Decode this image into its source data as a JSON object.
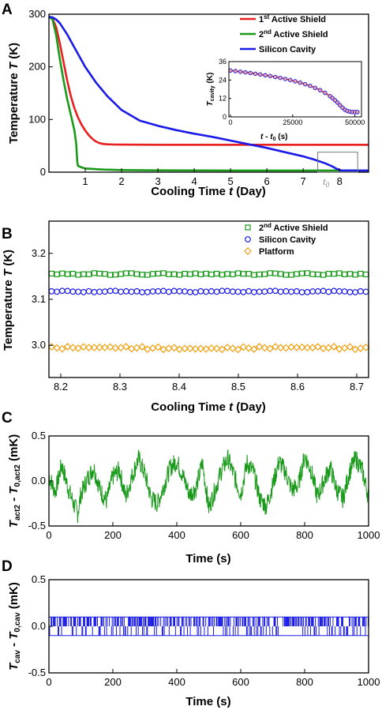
{
  "chart_data": [
    {
      "panel": "A",
      "type": "line",
      "xlabel_prefix": "Cooling Time ",
      "xlabel_var": "t",
      "xlabel_suffix": " (Day)",
      "ylabel_prefix": "Temperature ",
      "ylabel_var": "T",
      "ylabel_suffix": " (K)",
      "xlim": [
        0.0,
        8.8
      ],
      "ylim": [
        0,
        300
      ],
      "xticks": [
        1,
        2,
        3,
        4,
        5,
        6,
        7,
        8
      ],
      "yticks": [
        0,
        100,
        200,
        300
      ],
      "t0_marker": {
        "x": 7.65,
        "label": "t",
        "sub": "0"
      },
      "zoom_box": {
        "x": [
          7.4,
          8.5
        ],
        "y": [
          0,
          38
        ]
      },
      "legend_position": "top-right",
      "series": [
        {
          "name": "1st Active Shield",
          "name_base": "1",
          "name_sup": "st",
          "name_rest": " Active Shield",
          "color": "#e81f1f",
          "x": [
            0.0,
            0.1,
            0.2,
            0.3,
            0.4,
            0.5,
            0.6,
            0.7,
            0.8,
            0.9,
            1.0,
            1.1,
            1.2,
            1.3,
            1.4,
            1.5,
            1.6,
            1.8,
            2.0,
            3.0,
            4.0,
            5.0,
            6.0,
            7.0,
            8.0,
            8.8
          ],
          "y": [
            295,
            292,
            275,
            245,
            210,
            175,
            145,
            122,
            104,
            90,
            79,
            70,
            63,
            58,
            55,
            53.5,
            53,
            52.5,
            52.3,
            52,
            52,
            52,
            52,
            52,
            52,
            52
          ]
        },
        {
          "name": "2nd Active Shield",
          "name_base": "2",
          "name_sup": "nd",
          "name_rest": " Active Shield",
          "color": "#1a9a1a",
          "x": [
            0.0,
            0.1,
            0.2,
            0.3,
            0.4,
            0.5,
            0.6,
            0.7,
            0.75,
            0.78,
            0.8,
            0.9,
            1.0,
            1.5,
            2.0,
            3.0,
            4.0,
            5.0,
            6.0,
            7.0,
            8.0,
            8.8
          ],
          "y": [
            295,
            290,
            260,
            215,
            175,
            140,
            110,
            80,
            55,
            20,
            12,
            9,
            7,
            5,
            4,
            3.5,
            3.3,
            3.2,
            3.2,
            3.15,
            3.15,
            3.15
          ]
        },
        {
          "name": "Silicon Cavity",
          "name_base": "Silicon Cavity",
          "name_sup": "",
          "name_rest": "",
          "color": "#1a1ae8",
          "x": [
            0.0,
            0.1,
            0.2,
            0.3,
            0.5,
            0.7,
            1.0,
            1.3,
            1.6,
            2.0,
            2.5,
            3.0,
            3.5,
            4.0,
            4.5,
            5.0,
            5.5,
            6.0,
            6.5,
            7.0,
            7.3,
            7.6,
            7.8,
            7.9,
            8.0,
            8.05,
            8.1,
            8.8
          ],
          "y": [
            295,
            294,
            290,
            283,
            262,
            237,
            200,
            170,
            145,
            118,
            98,
            88,
            80,
            73,
            67,
            60,
            53,
            46,
            38,
            30,
            24,
            17,
            11,
            7,
            4,
            3.3,
            3.1,
            3.1
          ]
        }
      ],
      "inset": {
        "type": "scatter",
        "xlabel_a": "t",
        "xlabel_b": " - ",
        "xlabel_c": "t",
        "xlabel_sub": "0",
        "xlabel_unit": " (s)",
        "ylabel_var": "T",
        "ylabel_sub": "cavity",
        "ylabel_unit": " (K)",
        "xlim": [
          0,
          52000
        ],
        "ylim": [
          0,
          36
        ],
        "xticks": [
          0,
          25000,
          50000
        ],
        "yticks": [
          0,
          12,
          24,
          36
        ],
        "marker_face": "#f0a0a0",
        "marker_edge": "#1a1ae8",
        "line_color": "#e81f1f",
        "x": [
          0,
          2000,
          4000,
          6000,
          8000,
          10000,
          12000,
          14000,
          16000,
          18000,
          20000,
          22000,
          24000,
          26000,
          28000,
          30000,
          32000,
          34000,
          36000,
          38000,
          40000,
          41000,
          42000,
          43000,
          44000,
          45000,
          46000,
          47000,
          48000,
          49000,
          50000,
          51000
        ],
        "y": [
          30.2,
          29.8,
          29.4,
          29.0,
          28.6,
          28.1,
          27.6,
          27.1,
          26.6,
          26.0,
          25.4,
          24.7,
          24.0,
          23.2,
          22.3,
          21.3,
          20.2,
          18.9,
          17.4,
          15.6,
          13.5,
          12.2,
          10.8,
          9.3,
          7.6,
          6.0,
          4.6,
          3.8,
          3.4,
          3.2,
          3.15,
          3.15
        ]
      }
    },
    {
      "panel": "B",
      "type": "scatter",
      "xlabel_prefix": "Cooling Time ",
      "xlabel_var": "t",
      "xlabel_suffix": " (Day)",
      "ylabel_prefix": "Temperature ",
      "ylabel_var": "T",
      "ylabel_suffix": " (K)",
      "xlim": [
        8.18,
        8.72
      ],
      "ylim": [
        2.93,
        3.27
      ],
      "xticks": [
        8.2,
        8.3,
        8.4,
        8.5,
        8.6,
        8.7
      ],
      "yticks": [
        3.0,
        3.1,
        3.2
      ],
      "legend_position": "top-right",
      "series": [
        {
          "name": "2nd Active Shield",
          "name_base": "2",
          "name_sup": "nd",
          "name_rest": " Active Shield",
          "marker": "square",
          "color": "#1a9a1a",
          "mean": 3.155,
          "amplitude": 0.002,
          "period": 0.06
        },
        {
          "name": "Silicon Cavity",
          "name_base": "Silicon Cavity",
          "name_sup": "",
          "name_rest": "",
          "marker": "circle",
          "color": "#1a1ae8",
          "mean": 3.117,
          "amplitude": 0.0015,
          "period": 0.09
        },
        {
          "name": "Platform",
          "name_base": "Platform",
          "name_sup": "",
          "name_rest": "",
          "marker": "diamond",
          "color": "#f0a010",
          "mean": 2.994,
          "amplitude": 0.003,
          "period": 0.025
        }
      ]
    },
    {
      "panel": "C",
      "type": "line",
      "xlabel": "Time (s)",
      "ylabel_a": "T",
      "ylabel_a_sub": "act2",
      "ylabel_b": " - ",
      "ylabel_c": "T",
      "ylabel_c_sub": "0,act2",
      "ylabel_unit": " (mK)",
      "xlim": [
        0,
        1000
      ],
      "ylim": [
        -0.5,
        0.5
      ],
      "xticks": [
        0,
        200,
        400,
        600,
        800,
        1000
      ],
      "yticks": [
        -0.5,
        0.0,
        0.5
      ],
      "ytick_labels": [
        "-0.5",
        "0.0",
        "0.5"
      ],
      "series": [
        {
          "name": "",
          "color": "#1a9a1a",
          "x": [
            0,
            20,
            40,
            60,
            80,
            90,
            100,
            120,
            140,
            160,
            180,
            200,
            220,
            240,
            260,
            280,
            300,
            320,
            340,
            360,
            380,
            400,
            420,
            440,
            460,
            480,
            500,
            520,
            540,
            560,
            580,
            600,
            620,
            640,
            660,
            680,
            700,
            720,
            740,
            760,
            780,
            800,
            820,
            840,
            860,
            880,
            900,
            920,
            940,
            960,
            980,
            1000
          ],
          "y": [
            0.05,
            -0.12,
            0.18,
            -0.08,
            -0.28,
            -0.36,
            -0.15,
            0.02,
            0.15,
            -0.1,
            -0.22,
            0.05,
            0.12,
            -0.18,
            0.05,
            0.25,
            0.08,
            -0.2,
            -0.25,
            -0.05,
            0.15,
            0.22,
            0.05,
            -0.15,
            -0.08,
            0.2,
            -0.3,
            -0.1,
            0.12,
            0.25,
            0.05,
            -0.15,
            0.2,
            0.1,
            -0.2,
            -0.28,
            -0.05,
            0.22,
            0.1,
            -0.1,
            -0.05,
            0.28,
            0.12,
            -0.18,
            0.0,
            0.15,
            -0.1,
            -0.2,
            0.1,
            0.25,
            0.12,
            -0.18
          ]
        }
      ]
    },
    {
      "panel": "D",
      "type": "line",
      "xlabel": "Time (s)",
      "ylabel_a": "T",
      "ylabel_a_sub": "cav",
      "ylabel_b": " - ",
      "ylabel_c": "T",
      "ylabel_c_sub": "0,cav",
      "ylabel_unit": " (mK)",
      "xlim": [
        0,
        1000
      ],
      "ylim": [
        -0.5,
        0.5
      ],
      "xticks": [
        0,
        200,
        400,
        600,
        800,
        1000
      ],
      "yticks": [
        -0.5,
        0.0,
        0.5
      ],
      "ytick_labels": [
        "-0.5",
        "0.0",
        "0.5"
      ],
      "levels": [
        -0.1,
        0.1
      ],
      "series": [
        {
          "name": "",
          "color": "#1a1ae8"
        }
      ]
    }
  ]
}
